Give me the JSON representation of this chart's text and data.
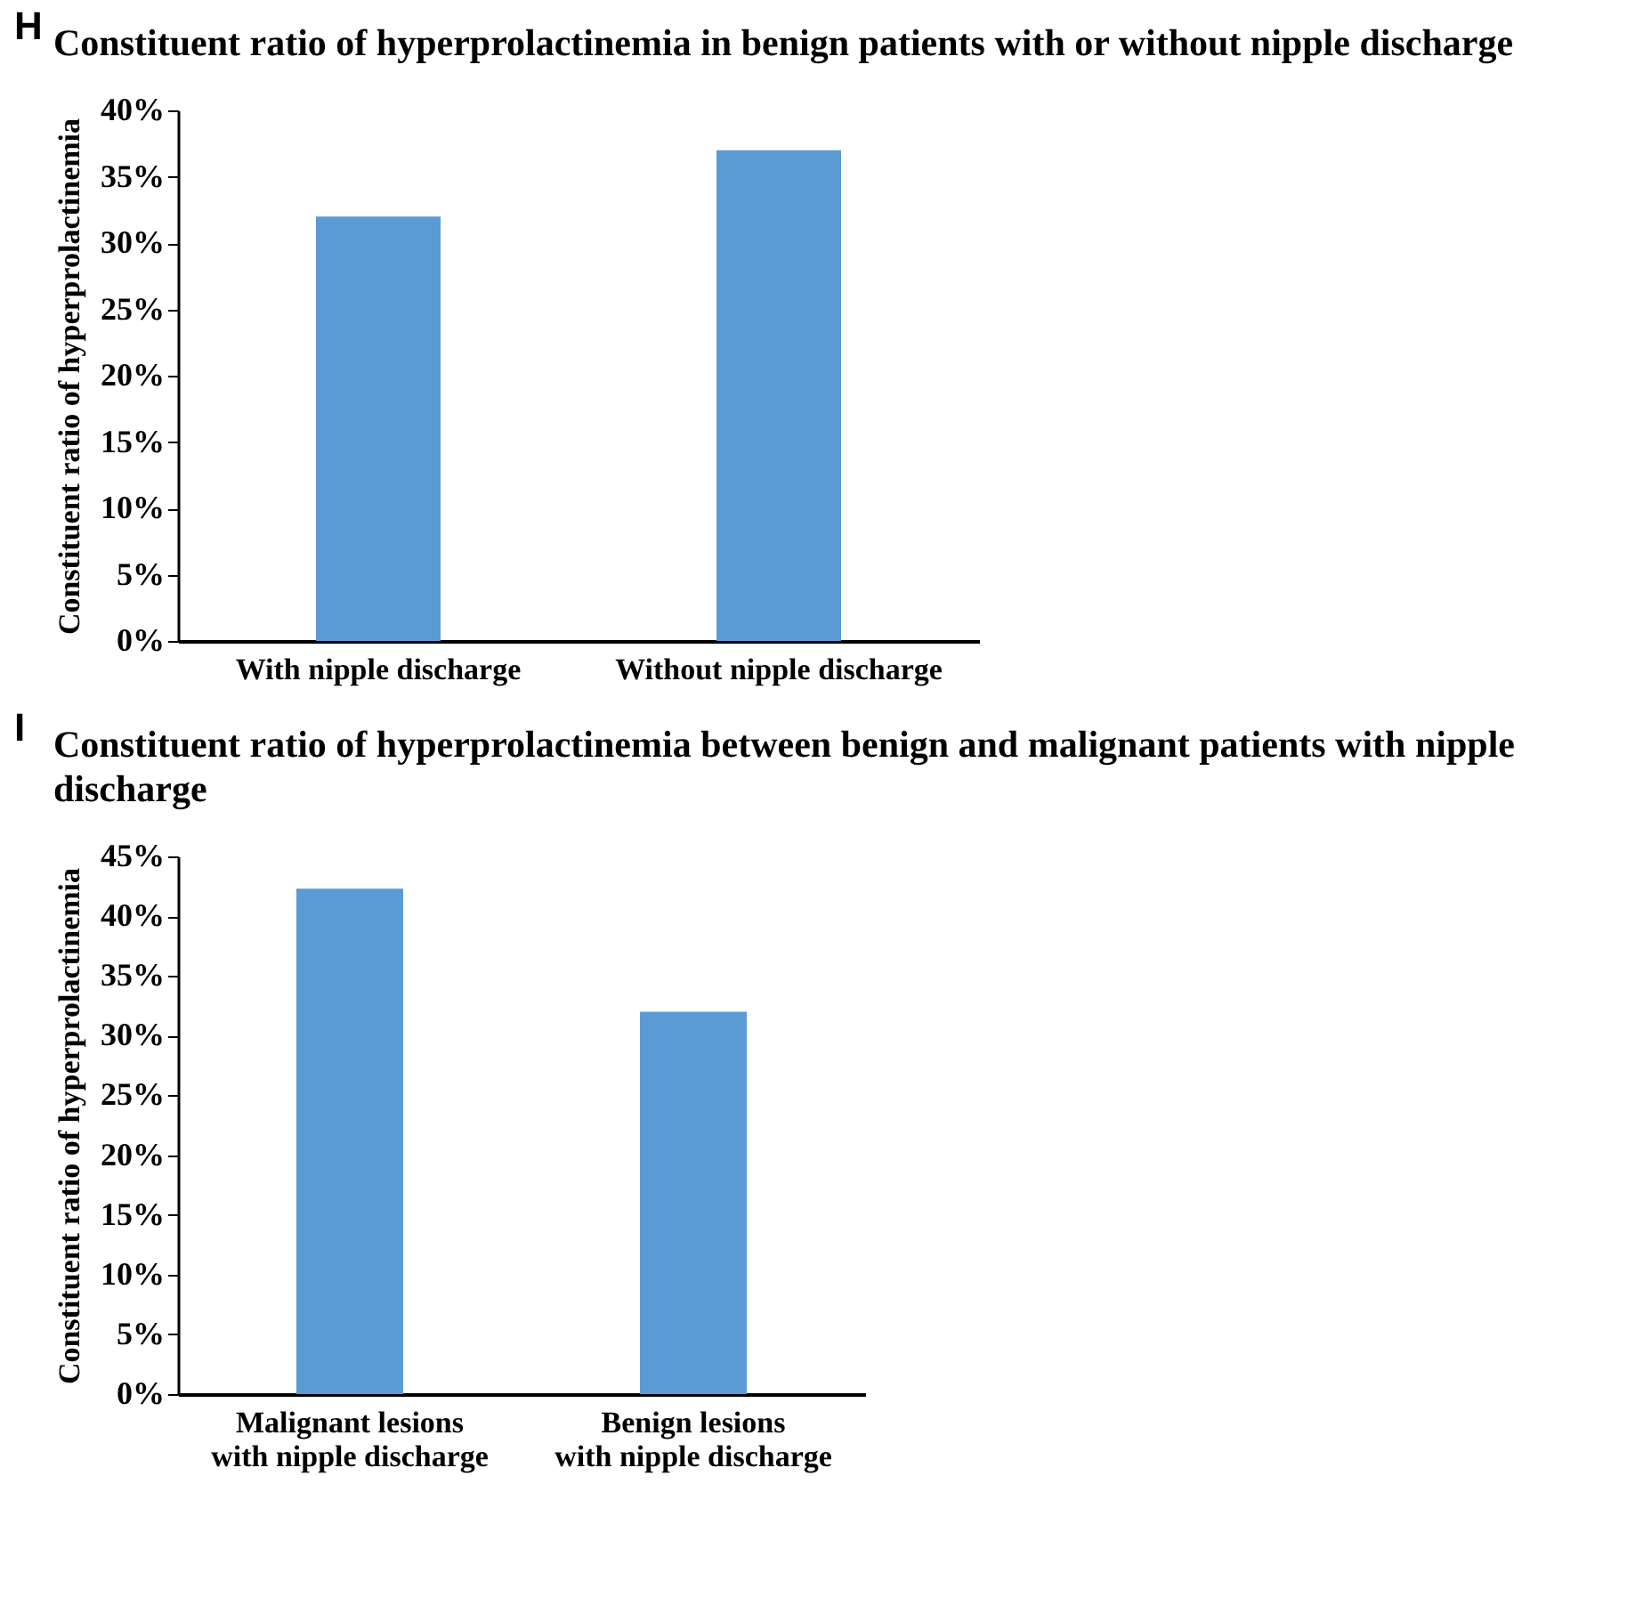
{
  "chart_data": [
    {
      "type": "bar",
      "title": "Constituent ratio of hyperprolactinemia in benign patients with or without nipple discharge",
      "annotations": [
        "H"
      ],
      "ylabel": "Constituent ratio of hyperprolactinemia",
      "categories": [
        "With nipple discharge",
        "Without nipple discharge"
      ],
      "values": [
        32,
        37
      ],
      "color": "#5b9bd5",
      "ylim": [
        0,
        40
      ],
      "yticks": [
        {
          "value": 0,
          "label": "0%"
        },
        {
          "value": 5,
          "label": "5%"
        },
        {
          "value": 10,
          "label": "10%"
        },
        {
          "value": 15,
          "label": "15%"
        },
        {
          "value": 20,
          "label": "20%"
        },
        {
          "value": 25,
          "label": "25%"
        },
        {
          "value": 30,
          "label": "30%"
        },
        {
          "value": 35,
          "label": "35%"
        },
        {
          "value": 40,
          "label": "40%"
        }
      ],
      "grid": false
    },
    {
      "type": "bar",
      "title": "Constituent ratio of hyperprolactinemia between benign and malignant patients with nipple discharge",
      "annotations": [
        "I"
      ],
      "ylabel": "Constituent ratio of hyperprolactinemia",
      "categories": [
        "Malignant lesions\nwith nipple discharge",
        "Benign lesions\nwith nipple discharge"
      ],
      "values": [
        42.3,
        32
      ],
      "color": "#5b9bd5",
      "ylim": [
        0,
        45
      ],
      "yticks": [
        {
          "value": 0,
          "label": "0%"
        },
        {
          "value": 5,
          "label": "5%"
        },
        {
          "value": 10,
          "label": "10%"
        },
        {
          "value": 15,
          "label": "15%"
        },
        {
          "value": 20,
          "label": "20%"
        },
        {
          "value": 25,
          "label": "25%"
        },
        {
          "value": 30,
          "label": "30%"
        },
        {
          "value": 35,
          "label": "35%"
        },
        {
          "value": 40,
          "label": "40%"
        },
        {
          "value": 45,
          "label": "45%"
        }
      ],
      "grid": false
    }
  ]
}
